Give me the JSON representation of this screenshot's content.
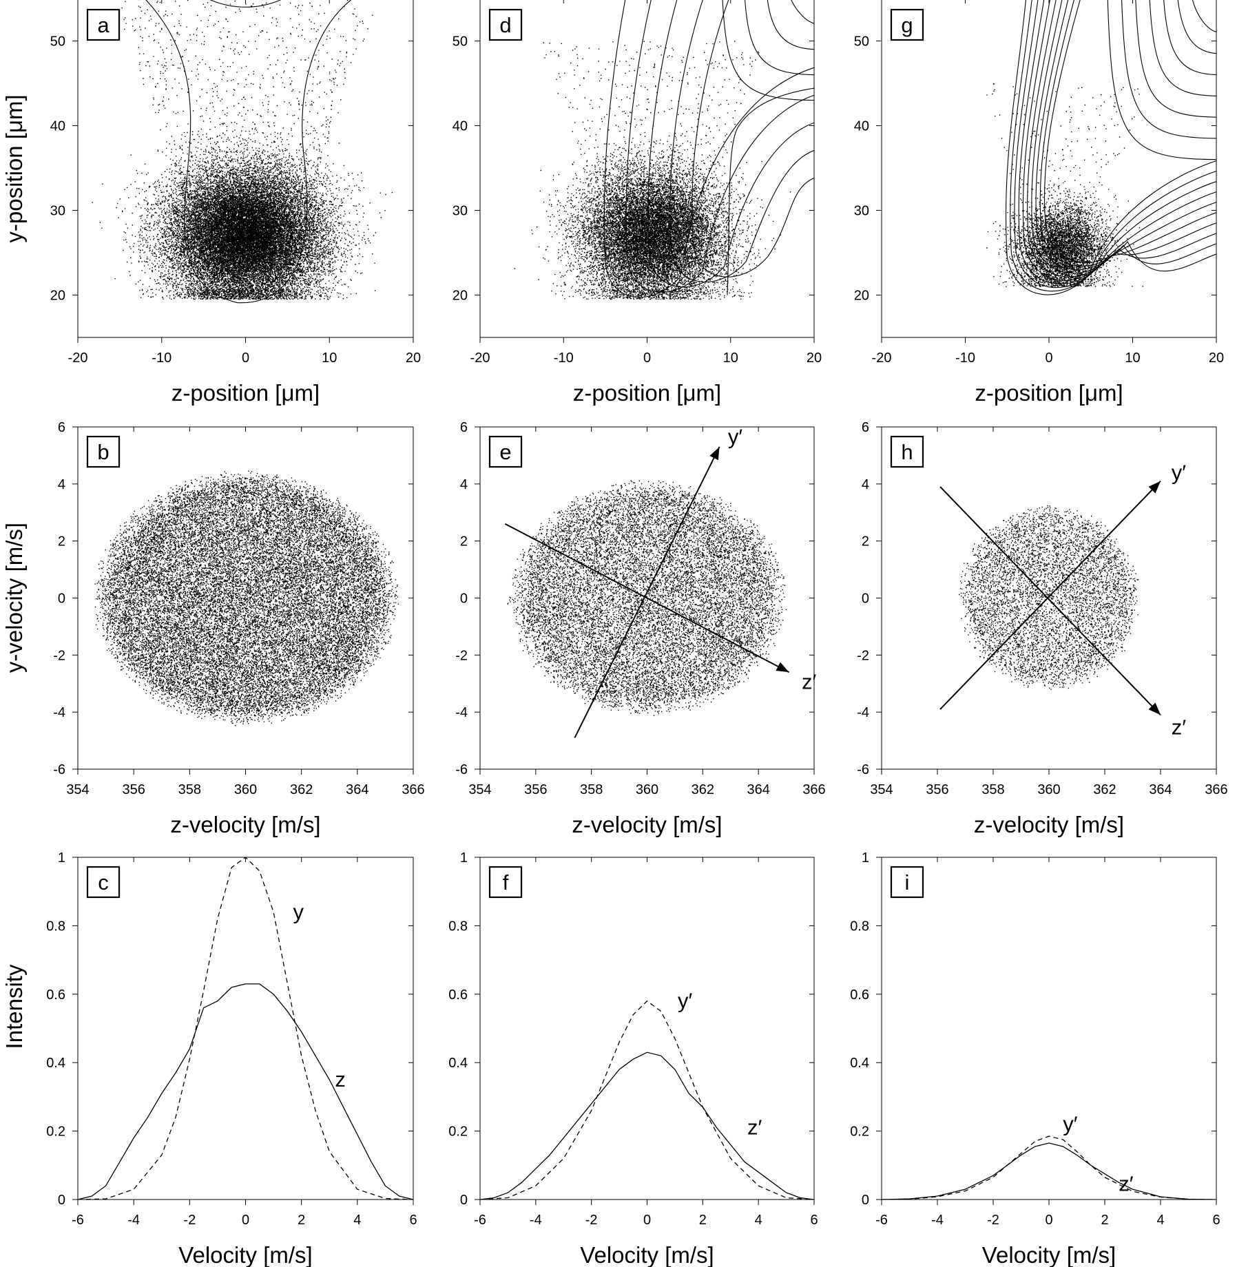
{
  "figure": {
    "axis_labels": {
      "row1_x": "z-position [μm]",
      "row1_y": "y-position [μm]",
      "row2_x": "z-velocity [m/s]",
      "row2_y": "y-velocity [m/s]",
      "row3_x": "Velocity [m/s]",
      "row3_y": "Intensity"
    }
  },
  "chart_data": [
    {
      "panel": "a",
      "type": "scatter",
      "row": 1,
      "col": 1,
      "xlabel": "z-position [μm]",
      "ylabel": "y-position [μm]",
      "xlim": [
        -20,
        20
      ],
      "ylim": [
        15,
        55
      ],
      "xticks": [
        -20,
        -10,
        0,
        10,
        20
      ],
      "yticks": [
        20,
        30,
        40,
        50
      ],
      "cloud": {
        "cx": 0,
        "cy": 27,
        "sx": 4.6,
        "sy": 3.9,
        "n": 26000,
        "halo_n": 900,
        "halo_top": 55,
        "floor": 19.5
      },
      "contours": "single-well"
    },
    {
      "panel": "d",
      "type": "scatter",
      "row": 1,
      "col": 2,
      "xlabel": "z-position [μm]",
      "xlim": [
        -20,
        20
      ],
      "ylim": [
        15,
        55
      ],
      "xticks": [
        -20,
        -10,
        0,
        10,
        20
      ],
      "yticks": [
        20,
        30,
        40,
        50
      ],
      "cloud": {
        "cx": 0.5,
        "cy": 27,
        "sx": 4.2,
        "sy": 3.8,
        "n": 16000,
        "halo_n": 450,
        "halo_top": 50,
        "floor": 19.5
      },
      "contours": "split-well-weak"
    },
    {
      "panel": "g",
      "type": "scatter",
      "row": 1,
      "col": 3,
      "xlabel": "z-position [μm]",
      "xlim": [
        -20,
        20
      ],
      "ylim": [
        15,
        55
      ],
      "xticks": [
        -20,
        -10,
        0,
        10,
        20
      ],
      "yticks": [
        20,
        30,
        40,
        50
      ],
      "cloud": {
        "cx": 1.5,
        "cy": 25.5,
        "sx": 2.6,
        "sy": 2.6,
        "n": 5500,
        "halo_n": 180,
        "halo_top": 45,
        "floor": 21
      },
      "contours": "split-well-strong"
    },
    {
      "panel": "b",
      "type": "scatter",
      "row": 2,
      "col": 1,
      "xlabel": "z-velocity [m/s]",
      "ylabel": "y-velocity [m/s]",
      "xlim": [
        354,
        366
      ],
      "ylim": [
        -6,
        6
      ],
      "xticks": [
        354,
        356,
        358,
        360,
        362,
        364,
        366
      ],
      "yticks": [
        -6,
        -4,
        -2,
        0,
        2,
        4,
        6
      ],
      "cloud": {
        "cx": 360,
        "cy": 0,
        "rx": 5.5,
        "ry": 4.5,
        "n": 26000,
        "tilt": 0
      }
    },
    {
      "panel": "e",
      "type": "scatter",
      "row": 2,
      "col": 2,
      "xlabel": "z-velocity [m/s]",
      "xlim": [
        354,
        366
      ],
      "ylim": [
        -6,
        6
      ],
      "xticks": [
        354,
        356,
        358,
        360,
        362,
        364,
        366
      ],
      "yticks": [
        -6,
        -4,
        -2,
        0,
        2,
        4,
        6
      ],
      "cloud": {
        "cx": 360,
        "cy": 0,
        "rx": 5.2,
        "ry": 4.3,
        "n": 15000,
        "tilt": -0.3
      },
      "axes_arrows": [
        {
          "label": "y′",
          "from": [
            357.4,
            -4.9
          ],
          "to": [
            362.6,
            5.3
          ]
        },
        {
          "label": "z′",
          "from": [
            354.9,
            2.6
          ],
          "to": [
            365.1,
            -2.6
          ]
        }
      ]
    },
    {
      "panel": "h",
      "type": "scatter",
      "row": 2,
      "col": 3,
      "xlabel": "z-velocity [m/s]",
      "xlim": [
        354,
        366
      ],
      "ylim": [
        -6,
        6
      ],
      "xticks": [
        354,
        356,
        358,
        360,
        362,
        364,
        366
      ],
      "yticks": [
        -6,
        -4,
        -2,
        0,
        2,
        4,
        6
      ],
      "cloud": {
        "cx": 360,
        "cy": 0,
        "rx": 3.3,
        "ry": 3.3,
        "n": 6000,
        "tilt": 0
      },
      "axes_arrows": [
        {
          "label": "y′",
          "from": [
            356.1,
            -3.9
          ],
          "to": [
            364.0,
            4.1
          ]
        },
        {
          "label": "z′",
          "from": [
            356.1,
            3.9
          ],
          "to": [
            364.0,
            -4.1
          ]
        }
      ]
    },
    {
      "panel": "c",
      "type": "line",
      "row": 3,
      "col": 1,
      "xlabel": "Velocity [m/s]",
      "ylabel": "Intensity",
      "xlim": [
        -6,
        6
      ],
      "ylim": [
        0,
        1
      ],
      "xticks": [
        -6,
        -4,
        -2,
        0,
        2,
        4,
        6
      ],
      "yticks": [
        0,
        0.2,
        0.4,
        0.6,
        0.8,
        1
      ],
      "series": [
        {
          "name": "y",
          "style": "dashed",
          "x": [
            -6,
            -5,
            -4,
            -3,
            -2.5,
            -2,
            -1.5,
            -1,
            -0.5,
            0,
            0.5,
            1,
            1.5,
            2,
            2.5,
            3,
            4,
            5,
            6
          ],
          "y": [
            0,
            0.002,
            0.03,
            0.13,
            0.24,
            0.41,
            0.61,
            0.82,
            0.97,
            1.0,
            0.96,
            0.84,
            0.63,
            0.42,
            0.26,
            0.14,
            0.03,
            0.003,
            0
          ]
        },
        {
          "name": "z",
          "style": "solid",
          "x": [
            -6,
            -5.5,
            -5,
            -4.5,
            -4,
            -3.5,
            -3,
            -2.5,
            -2,
            -1.5,
            -1,
            -0.5,
            0,
            0.5,
            1,
            1.5,
            2,
            2.5,
            3,
            3.5,
            4,
            4.5,
            5,
            5.5,
            6
          ],
          "y": [
            0,
            0.01,
            0.04,
            0.11,
            0.18,
            0.24,
            0.31,
            0.37,
            0.44,
            0.56,
            0.58,
            0.62,
            0.63,
            0.63,
            0.6,
            0.55,
            0.49,
            0.42,
            0.35,
            0.27,
            0.19,
            0.11,
            0.04,
            0.01,
            0
          ]
        }
      ],
      "labels": [
        {
          "text": "y",
          "at": [
            1.7,
            0.82
          ]
        },
        {
          "text": "z",
          "at": [
            3.2,
            0.33
          ]
        }
      ]
    },
    {
      "panel": "f",
      "type": "line",
      "row": 3,
      "col": 2,
      "xlabel": "Velocity [m/s]",
      "xlim": [
        -6,
        6
      ],
      "ylim": [
        0,
        1
      ],
      "xticks": [
        -6,
        -4,
        -2,
        0,
        2,
        4,
        6
      ],
      "yticks": [
        0,
        0.2,
        0.4,
        0.6,
        0.8,
        1
      ],
      "series": [
        {
          "name": "y′",
          "style": "dashed",
          "x": [
            -6,
            -5,
            -4,
            -3,
            -2,
            -1.5,
            -1,
            -0.5,
            0,
            0.5,
            1,
            1.5,
            2,
            3,
            4,
            5,
            6
          ],
          "y": [
            0,
            0.005,
            0.04,
            0.12,
            0.26,
            0.36,
            0.46,
            0.54,
            0.58,
            0.55,
            0.47,
            0.37,
            0.27,
            0.12,
            0.04,
            0.005,
            0
          ]
        },
        {
          "name": "z′",
          "style": "solid",
          "x": [
            -6,
            -5.5,
            -5,
            -4.5,
            -4,
            -3.5,
            -3,
            -2.5,
            -2,
            -1.5,
            -1,
            -0.5,
            0,
            0.5,
            1,
            1.5,
            2,
            2.5,
            3,
            3.5,
            4,
            4.5,
            5,
            5.5,
            6
          ],
          "y": [
            0,
            0.005,
            0.02,
            0.05,
            0.09,
            0.13,
            0.18,
            0.23,
            0.28,
            0.33,
            0.38,
            0.41,
            0.43,
            0.42,
            0.38,
            0.31,
            0.27,
            0.21,
            0.16,
            0.11,
            0.08,
            0.05,
            0.02,
            0.005,
            0
          ]
        }
      ],
      "labels": [
        {
          "text": "y′",
          "at": [
            1.1,
            0.56
          ]
        },
        {
          "text": "z′",
          "at": [
            3.6,
            0.19
          ]
        }
      ]
    },
    {
      "panel": "i",
      "type": "line",
      "row": 3,
      "col": 3,
      "xlabel": "Velocity [m/s]",
      "xlim": [
        -6,
        6
      ],
      "ylim": [
        0,
        1
      ],
      "xticks": [
        -6,
        -4,
        -2,
        0,
        2,
        4,
        6
      ],
      "yticks": [
        0,
        0.2,
        0.4,
        0.6,
        0.8,
        1
      ],
      "series": [
        {
          "name": "y′",
          "style": "dashed",
          "x": [
            -6,
            -5,
            -4,
            -3,
            -2,
            -1.5,
            -1,
            -0.5,
            0,
            0.5,
            1,
            1.5,
            2,
            3,
            4,
            5,
            6
          ],
          "y": [
            0,
            0.001,
            0.008,
            0.025,
            0.065,
            0.1,
            0.135,
            0.17,
            0.185,
            0.175,
            0.14,
            0.1,
            0.065,
            0.024,
            0.007,
            0.001,
            0
          ]
        },
        {
          "name": "z′",
          "style": "solid",
          "x": [
            -6,
            -5,
            -4,
            -3,
            -2,
            -1.5,
            -1,
            -0.5,
            0,
            0.5,
            1,
            1.5,
            2,
            2.5,
            3,
            4,
            5,
            6
          ],
          "y": [
            0,
            0.002,
            0.01,
            0.03,
            0.07,
            0.1,
            0.13,
            0.155,
            0.165,
            0.155,
            0.13,
            0.1,
            0.075,
            0.05,
            0.03,
            0.008,
            0.001,
            0
          ]
        }
      ],
      "labels": [
        {
          "text": "y′",
          "at": [
            0.5,
            0.2
          ]
        },
        {
          "text": "z′",
          "at": [
            2.5,
            0.025
          ]
        }
      ]
    }
  ]
}
